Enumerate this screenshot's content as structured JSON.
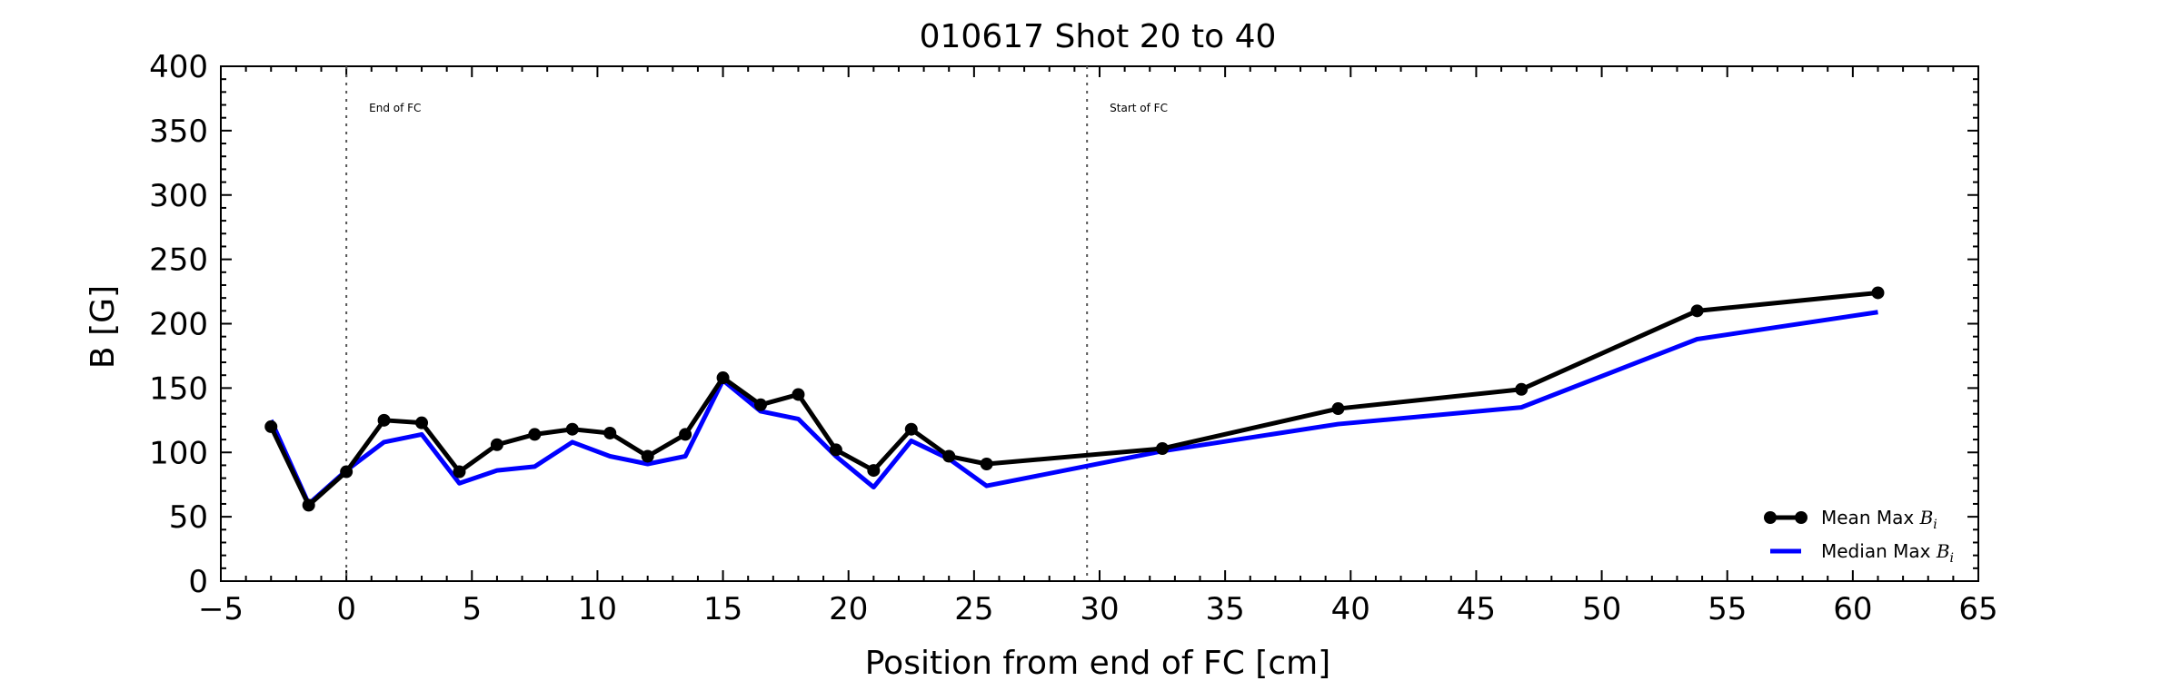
{
  "chart_data": {
    "type": "line",
    "title": "010617 Shot 20 to 40",
    "xlabel": "Position from end of FC [cm]",
    "ylabel": "B [G]",
    "xlim": [
      -5,
      65
    ],
    "ylim": [
      0,
      400
    ],
    "x_ticks": [
      -5,
      0,
      5,
      10,
      15,
      20,
      25,
      30,
      35,
      40,
      45,
      50,
      55,
      60,
      65
    ],
    "x_tick_labels": [
      "−5",
      "0",
      "5",
      "10",
      "15",
      "20",
      "25",
      "30",
      "35",
      "40",
      "45",
      "50",
      "55",
      "60",
      "65"
    ],
    "y_ticks": [
      0,
      50,
      100,
      150,
      200,
      250,
      300,
      350,
      400
    ],
    "y_tick_labels": [
      "0",
      "50",
      "100",
      "150",
      "200",
      "250",
      "300",
      "350",
      "400"
    ],
    "grid": false,
    "legend_position": "bottom-right",
    "vlines": [
      {
        "x": 0,
        "label": "End of FC"
      },
      {
        "x": 29.5,
        "label": "Start of FC"
      }
    ],
    "series": [
      {
        "name": "Mean Max",
        "name_symbol": "B",
        "name_subscript": "i",
        "color": "#000000",
        "markers": true,
        "x": [
          -3,
          -1.5,
          0,
          1.5,
          3,
          4.5,
          6,
          7.5,
          9,
          10.5,
          12,
          13.5,
          15,
          16.5,
          18,
          19.5,
          21,
          22.5,
          24,
          25.5,
          32.5,
          39.5,
          46.8,
          53.8,
          61
        ],
        "y": [
          120,
          59,
          85,
          125,
          123,
          85,
          106,
          114,
          118,
          115,
          97,
          114,
          158,
          137,
          145,
          102,
          86,
          118,
          97,
          91,
          103,
          134,
          149,
          210,
          224
        ]
      },
      {
        "name": "Median Max",
        "name_symbol": "B",
        "name_subscript": "i",
        "color": "#0000ff",
        "markers": false,
        "x": [
          -3,
          -1.5,
          0,
          1.5,
          3,
          4.5,
          6,
          7.5,
          9,
          10.5,
          12,
          13.5,
          15,
          16.5,
          18,
          19.5,
          21,
          22.5,
          24,
          25.5,
          32.5,
          39.5,
          46.8,
          53.8,
          61
        ],
        "y": [
          125,
          60,
          86,
          108,
          114,
          76,
          86,
          89,
          108,
          97,
          91,
          97,
          156,
          132,
          126,
          97,
          73,
          109,
          95,
          74,
          101,
          122,
          135,
          188,
          209
        ]
      }
    ]
  }
}
